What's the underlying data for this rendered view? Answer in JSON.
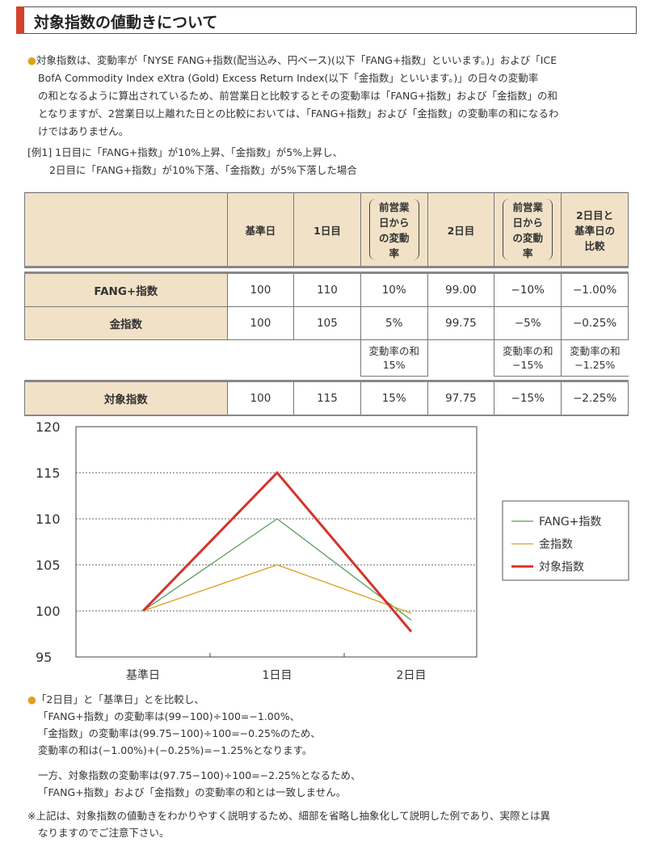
{
  "title": "対象指数の値動きについて",
  "intro": [
    "対象指数は、変動率が「NYSE FANG+指数(配当込み、円ベース)(以下「FANG+指数」といいます。)」および「ICE",
    "BofA Commodity Index eXtra (Gold) Excess Return Index(以下「金指数」といいます。)」の日々の変動率",
    "の和となるように算出されているため、前営業日と比較するとその変動率は「FANG+指数」および「金指数」の和",
    "となりますが、2営業日以上離れた日との比較においては、「FANG+指数」および「金指数」の変動率の和になるわ",
    "けではありません。"
  ],
  "example": [
    "[例1] 1日目に「FANG+指数」が10%上昇、「金指数」が5%上昇し、",
    "2日目に「FANG+指数」が10%下落、「金指数」が5%下落した場合"
  ],
  "table": {
    "headers": [
      "基準日",
      "1日目",
      "前営業日からの変動率",
      "2日目",
      "前営業日からの変動率",
      "2日目と基準日の比較"
    ],
    "rows": [
      {
        "label": "FANG+指数",
        "cells": [
          "100",
          "110",
          "10%",
          "99.00",
          "−10%",
          "−1.00%"
        ]
      },
      {
        "label": "金指数",
        "cells": [
          "100",
          "105",
          "5%",
          "99.75",
          "−5%",
          "−0.25%"
        ]
      }
    ],
    "sum": {
      "label": "変動率の和",
      "d1": "15%",
      "d2": "−15%",
      "cmp": "−1.25%"
    },
    "target": {
      "label": "対象指数",
      "cells": [
        "100",
        "115",
        "15%",
        "97.75",
        "−15%",
        "−2.25%"
      ]
    }
  },
  "chart_data": {
    "type": "line",
    "categories": [
      "基準日",
      "1日目",
      "2日目"
    ],
    "series": [
      {
        "name": "FANG+指数",
        "values": [
          100,
          110,
          99
        ],
        "color": "#5a9a5a"
      },
      {
        "name": "金指数",
        "values": [
          100,
          105,
          99.75
        ],
        "color": "#d9a020"
      },
      {
        "name": "対象指数",
        "values": [
          100,
          115,
          97.75
        ],
        "color": "#d4332a"
      }
    ],
    "ylim": [
      95,
      120
    ],
    "yticks": [
      "95",
      "100",
      "105",
      "110",
      "115",
      "120"
    ],
    "grid": "dotted horizontal",
    "legend": "right"
  },
  "notes": [
    "「2日目」と「基準日」とを比較し、",
    "「FANG+指数」の変動率は(99−100)÷100=−1.00%、",
    "「金指数」の変動率は(99.75−100)÷100=−0.25%のため、",
    "変動率の和は(−1.00%)+(−0.25%)=−1.25%となります。"
  ],
  "notes2": [
    "一方、対象指数の変動率は(97.75−100)÷100=−2.25%となるため、",
    "「FANG+指数」および「金指数」の変動率の和とは一致しません。"
  ],
  "disclaimer": [
    "※上記は、対象指数の値動きをわかりやすく説明するため、細部を省略し抽象化して説明した例であり、実際とは異",
    "なりますのでご注意下さい。"
  ]
}
